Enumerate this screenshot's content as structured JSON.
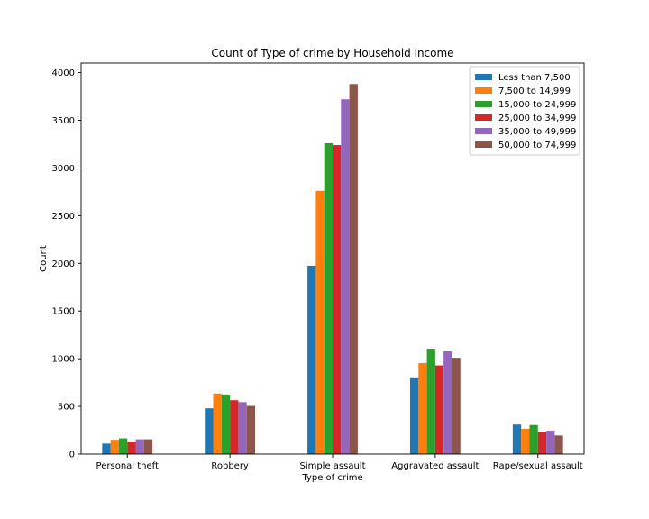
{
  "chart_data": {
    "type": "bar",
    "title": "Count of Type of crime by Household income",
    "xlabel": "Type of crime",
    "ylabel": "Count",
    "categories": [
      "Personal theft",
      "Robbery",
      "Simple assault",
      "Aggravated assault",
      "Rape/sexual assault"
    ],
    "ylim": [
      0,
      4100
    ],
    "yticks": [
      0,
      500,
      1000,
      1500,
      2000,
      2500,
      3000,
      3500,
      4000
    ],
    "yticks_labels": [
      "0",
      "500",
      "1000",
      "1500",
      "2000",
      "2500",
      "3000",
      "3500",
      "4000"
    ],
    "grid": false,
    "legend_position": "top-right",
    "series": [
      {
        "name": "Less than 7,500",
        "color": "#1f77b4",
        "values": [
          110,
          480,
          1975,
          805,
          310
        ]
      },
      {
        "name": "7,500 to 14,999",
        "color": "#ff7f0e",
        "values": [
          150,
          635,
          2760,
          955,
          265
        ]
      },
      {
        "name": "15,000 to 24,999",
        "color": "#2ca02c",
        "values": [
          165,
          625,
          3260,
          1105,
          305
        ]
      },
      {
        "name": "25,000 to 34,999",
        "color": "#d62728",
        "values": [
          130,
          565,
          3240,
          930,
          235
        ]
      },
      {
        "name": "35,000 to 49,999",
        "color": "#9467bd",
        "values": [
          155,
          545,
          3720,
          1080,
          245
        ]
      },
      {
        "name": "50,000 to 74,999",
        "color": "#8c564b",
        "values": [
          155,
          505,
          3880,
          1010,
          195
        ]
      }
    ]
  }
}
